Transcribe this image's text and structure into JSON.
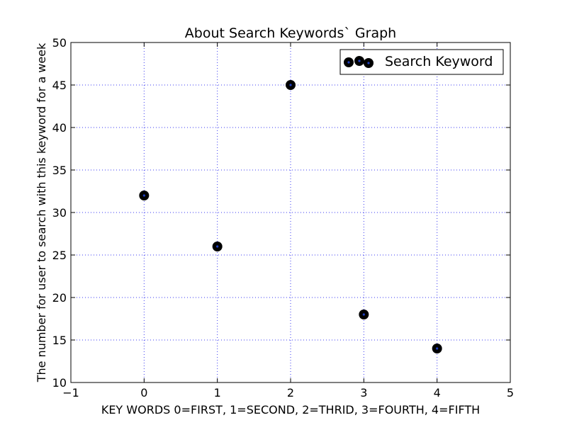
{
  "chart_data": {
    "type": "scatter",
    "title": "About Search Keywords` Graph",
    "xlabel": "KEY WORDS 0=FIRST, 1=SECOND, 2=THRID, 3=FOURTH, 4=FIFTH",
    "ylabel": "The number for user to search with this keyword for a week",
    "xlim": [
      -1,
      5
    ],
    "ylim": [
      10,
      50
    ],
    "xticks": [
      -1,
      0,
      1,
      2,
      3,
      4,
      5
    ],
    "yticks": [
      10,
      15,
      20,
      25,
      30,
      35,
      40,
      45,
      50
    ],
    "xtick_labels": [
      "−1",
      "0",
      "1",
      "2",
      "3",
      "4",
      "5"
    ],
    "ytick_labels": [
      "10",
      "15",
      "20",
      "25",
      "30",
      "35",
      "40",
      "45",
      "50"
    ],
    "grid": true,
    "legend_position": "top-right",
    "series": [
      {
        "name": "Search Keyword",
        "color": "#000000",
        "marker_center_color": "#1f3fbf",
        "x": [
          0,
          1,
          2,
          3,
          4
        ],
        "y": [
          32,
          26,
          45,
          18,
          14
        ]
      }
    ]
  }
}
